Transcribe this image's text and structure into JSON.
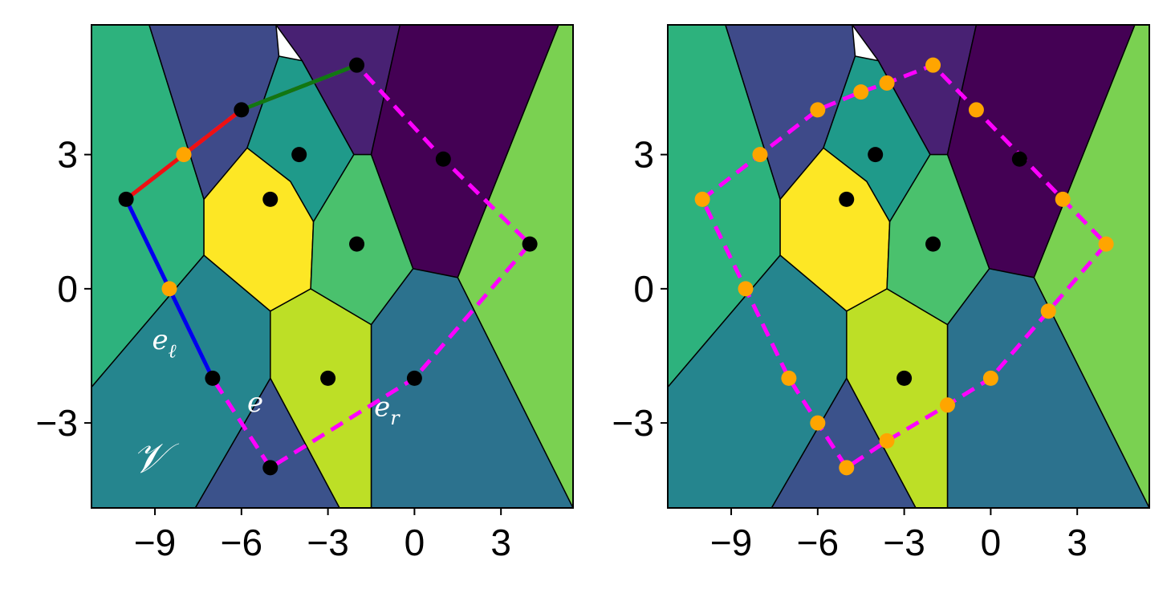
{
  "chart_data": [
    {
      "type": "scatter",
      "subtype": "voronoi-diagram",
      "xlim": [
        -11.2,
        5.5
      ],
      "ylim": [
        -4.9,
        5.9
      ],
      "xticks": [
        -9,
        -6,
        -3,
        0,
        3
      ],
      "yticks": [
        3,
        0,
        -3
      ],
      "xtick_labels": [
        "−9",
        "−6",
        "−3",
        "0",
        "3"
      ],
      "ytick_labels": [
        "3",
        "0",
        "−3"
      ],
      "grid": false,
      "sites": [
        {
          "x": -10,
          "y": 2
        },
        {
          "x": -6,
          "y": 4
        },
        {
          "x": -2,
          "y": 5
        },
        {
          "x": 1,
          "y": 2.9
        },
        {
          "x": 4,
          "y": 1
        },
        {
          "x": 0,
          "y": -2
        },
        {
          "x": -5,
          "y": -4
        },
        {
          "x": -7,
          "y": -2
        },
        {
          "x": -5,
          "y": 2
        },
        {
          "x": -4,
          "y": 3
        },
        {
          "x": -2,
          "y": 1
        },
        {
          "x": -3,
          "y": -2
        }
      ],
      "cells": [
        {
          "color": "#2db27d",
          "vertices": [
            [
              -11.2,
              5.9
            ],
            [
              -9.2,
              5.9
            ],
            [
              -7.3,
              2
            ],
            [
              -7.3,
              0.75
            ],
            [
              -11.2,
              -2.2
            ]
          ]
        },
        {
          "color": "#3e4a89",
          "vertices": [
            [
              -9.2,
              5.9
            ],
            [
              -4.8,
              5.9
            ],
            [
              -4.7,
              5.2
            ],
            [
              -5.8,
              3.15
            ],
            [
              -7.3,
              2
            ]
          ]
        },
        {
          "color": "#482173",
          "vertices": [
            [
              -4.8,
              5.9
            ],
            [
              -0.5,
              5.9
            ],
            [
              -1.5,
              3
            ],
            [
              -2.1,
              3
            ],
            [
              -3.9,
              5.1
            ]
          ]
        },
        {
          "color": "#440154",
          "vertices": [
            [
              -0.5,
              5.9
            ],
            [
              5,
              5.9
            ],
            [
              1.5,
              0.25
            ],
            [
              -0.05,
              0.45
            ],
            [
              -1.5,
              3
            ]
          ]
        },
        {
          "color": "#7ad151",
          "vertices": [
            [
              5,
              5.9
            ],
            [
              5.5,
              5.9
            ],
            [
              5.5,
              -4.9
            ],
            [
              1.5,
              0.25
            ]
          ]
        },
        {
          "color": "#2c728e",
          "vertices": [
            [
              -1.5,
              -0.8
            ],
            [
              -0.05,
              0.45
            ],
            [
              1.5,
              0.25
            ],
            [
              5.5,
              -4.9
            ],
            [
              -1.5,
              -4.9
            ]
          ]
        },
        {
          "color": "#bddf26",
          "vertices": [
            [
              -5,
              -0.5
            ],
            [
              -3.6,
              0
            ],
            [
              -1.5,
              -0.8
            ],
            [
              -1.5,
              -4.9
            ],
            [
              -2.6,
              -4.9
            ],
            [
              -5,
              -2
            ]
          ]
        },
        {
          "color": "#3b528b",
          "vertices": [
            [
              -5,
              -2
            ],
            [
              -2.6,
              -4.9
            ],
            [
              -7.6,
              -4.9
            ]
          ]
        },
        {
          "color": "#25858e",
          "vertices": [
            [
              -11.2,
              -2.2
            ],
            [
              -7.3,
              0.75
            ],
            [
              -5,
              -0.5
            ],
            [
              -5,
              -2
            ],
            [
              -7.6,
              -4.9
            ],
            [
              -11.2,
              -4.9
            ]
          ]
        },
        {
          "color": "#fde725",
          "vertices": [
            [
              -7.3,
              2
            ],
            [
              -5.8,
              3.15
            ],
            [
              -4.3,
              2.4
            ],
            [
              -3.5,
              1.5
            ],
            [
              -3.6,
              0
            ],
            [
              -5,
              -0.5
            ],
            [
              -7.3,
              0.75
            ]
          ]
        },
        {
          "color": "#1f9a8a",
          "vertices": [
            [
              -5.8,
              3.15
            ],
            [
              -4.7,
              5.2
            ],
            [
              -3.9,
              5.1
            ],
            [
              -2.1,
              3
            ],
            [
              -3.5,
              1.5
            ],
            [
              -4.3,
              2.4
            ]
          ]
        },
        {
          "color": "#4ac16d",
          "vertices": [
            [
              -3.5,
              1.5
            ],
            [
              -2.1,
              3
            ],
            [
              -1.5,
              3
            ],
            [
              -0.05,
              0.45
            ],
            [
              -1.5,
              -0.8
            ],
            [
              -3.6,
              0
            ]
          ]
        }
      ],
      "boundary_path": [
        [
          -10,
          2
        ],
        [
          -6,
          4
        ],
        [
          -2,
          5
        ],
        [
          1,
          2.9
        ],
        [
          4,
          1
        ],
        [
          0,
          -2
        ],
        [
          -5,
          -4
        ],
        [
          -7,
          -2
        ],
        [
          -10,
          2
        ]
      ],
      "edges": [
        {
          "from": [
            -10,
            2
          ],
          "to": [
            -6,
            4
          ],
          "color": "#ee1111"
        },
        {
          "from": [
            -6,
            4
          ],
          "to": [
            -2,
            5
          ],
          "color": "#117711"
        },
        {
          "from": [
            -10,
            2
          ],
          "to": [
            -7,
            -2
          ],
          "color": "#0000ee"
        }
      ],
      "midpoints": [
        {
          "x": -8,
          "y": 3
        },
        {
          "x": -8.5,
          "y": 0
        }
      ],
      "annotations": [
        {
          "text": "𝒱",
          "x": -9.8,
          "y": -4.1,
          "size": 52
        },
        {
          "text": "e",
          "x": -5.8,
          "y": -2.75,
          "size": 34,
          "sub": ""
        },
        {
          "text": "e",
          "x": -9.1,
          "y": -1.35,
          "size": 34,
          "sub": "ℓ"
        },
        {
          "text": "e",
          "x": -1.4,
          "y": -2.85,
          "size": 34,
          "sub": "r"
        }
      ]
    },
    {
      "type": "scatter",
      "subtype": "voronoi-diagram",
      "xlim": [
        -11.2,
        5.5
      ],
      "ylim": [
        -4.9,
        5.9
      ],
      "xticks": [
        -9,
        -6,
        -3,
        0,
        3
      ],
      "yticks": [
        3,
        0,
        -3
      ],
      "xtick_labels": [
        "−9",
        "−6",
        "−3",
        "0",
        "3"
      ],
      "ytick_labels": [
        "3",
        "0",
        "−3"
      ],
      "grid": false,
      "sites": [
        {
          "x": -5,
          "y": 2
        },
        {
          "x": -4,
          "y": 3
        },
        {
          "x": -2,
          "y": 1
        },
        {
          "x": -3,
          "y": -2
        },
        {
          "x": 1,
          "y": 2.9
        }
      ],
      "cells": [
        {
          "color": "#2db27d",
          "vertices": [
            [
              -11.2,
              5.9
            ],
            [
              -9.2,
              5.9
            ],
            [
              -7.3,
              2
            ],
            [
              -7.3,
              0.75
            ],
            [
              -11.2,
              -2.2
            ]
          ]
        },
        {
          "color": "#3e4a89",
          "vertices": [
            [
              -9.2,
              5.9
            ],
            [
              -4.8,
              5.9
            ],
            [
              -4.7,
              5.2
            ],
            [
              -5.8,
              3.15
            ],
            [
              -7.3,
              2
            ]
          ]
        },
        {
          "color": "#482173",
          "vertices": [
            [
              -4.8,
              5.9
            ],
            [
              -0.5,
              5.9
            ],
            [
              -1.5,
              3
            ],
            [
              -2.1,
              3
            ],
            [
              -3.9,
              5.1
            ]
          ]
        },
        {
          "color": "#440154",
          "vertices": [
            [
              -0.5,
              5.9
            ],
            [
              5,
              5.9
            ],
            [
              1.5,
              0.25
            ],
            [
              -0.05,
              0.45
            ],
            [
              -1.5,
              3
            ]
          ]
        },
        {
          "color": "#7ad151",
          "vertices": [
            [
              5,
              5.9
            ],
            [
              5.5,
              5.9
            ],
            [
              5.5,
              -4.9
            ],
            [
              1.5,
              0.25
            ]
          ]
        },
        {
          "color": "#2c728e",
          "vertices": [
            [
              -1.5,
              -0.8
            ],
            [
              -0.05,
              0.45
            ],
            [
              1.5,
              0.25
            ],
            [
              5.5,
              -4.9
            ],
            [
              -1.5,
              -4.9
            ]
          ]
        },
        {
          "color": "#bddf26",
          "vertices": [
            [
              -5,
              -0.5
            ],
            [
              -3.6,
              0
            ],
            [
              -1.5,
              -0.8
            ],
            [
              -1.5,
              -4.9
            ],
            [
              -2.6,
              -4.9
            ],
            [
              -5,
              -2
            ]
          ]
        },
        {
          "color": "#3b528b",
          "vertices": [
            [
              -5,
              -2
            ],
            [
              -2.6,
              -4.9
            ],
            [
              -7.6,
              -4.9
            ]
          ]
        },
        {
          "color": "#25858e",
          "vertices": [
            [
              -11.2,
              -2.2
            ],
            [
              -7.3,
              0.75
            ],
            [
              -5,
              -0.5
            ],
            [
              -5,
              -2
            ],
            [
              -7.6,
              -4.9
            ],
            [
              -11.2,
              -4.9
            ]
          ]
        },
        {
          "color": "#fde725",
          "vertices": [
            [
              -7.3,
              2
            ],
            [
              -5.8,
              3.15
            ],
            [
              -4.3,
              2.4
            ],
            [
              -3.5,
              1.5
            ],
            [
              -3.6,
              0
            ],
            [
              -5,
              -0.5
            ],
            [
              -7.3,
              0.75
            ]
          ]
        },
        {
          "color": "#1f9a8a",
          "vertices": [
            [
              -5.8,
              3.15
            ],
            [
              -4.7,
              5.2
            ],
            [
              -3.9,
              5.1
            ],
            [
              -2.1,
              3
            ],
            [
              -3.5,
              1.5
            ],
            [
              -4.3,
              2.4
            ]
          ]
        },
        {
          "color": "#4ac16d",
          "vertices": [
            [
              -3.5,
              1.5
            ],
            [
              -2.1,
              3
            ],
            [
              -1.5,
              3
            ],
            [
              -0.05,
              0.45
            ],
            [
              -1.5,
              -0.8
            ],
            [
              -3.6,
              0
            ]
          ]
        }
      ],
      "boundary_path": [
        [
          -10,
          2
        ],
        [
          -8,
          3
        ],
        [
          -6,
          4
        ],
        [
          -4.5,
          4.4
        ],
        [
          -3.6,
          4.6
        ],
        [
          -2,
          5
        ],
        [
          -0.5,
          4
        ],
        [
          2.5,
          2
        ],
        [
          4,
          1
        ],
        [
          2,
          -0.5
        ],
        [
          0,
          -2
        ],
        [
          -1.5,
          -2.6
        ],
        [
          -3.6,
          -3.4
        ],
        [
          -5,
          -4
        ],
        [
          -6,
          -3
        ],
        [
          -7,
          -2
        ],
        [
          -8.5,
          0
        ],
        [
          -10,
          2
        ]
      ],
      "edges": [],
      "midpoints": [
        {
          "x": -10,
          "y": 2
        },
        {
          "x": -8,
          "y": 3
        },
        {
          "x": -6,
          "y": 4
        },
        {
          "x": -4.5,
          "y": 4.4
        },
        {
          "x": -3.6,
          "y": 4.6
        },
        {
          "x": -2,
          "y": 5
        },
        {
          "x": -0.5,
          "y": 4
        },
        {
          "x": 2.5,
          "y": 2
        },
        {
          "x": 4,
          "y": 1
        },
        {
          "x": 2,
          "y": -0.5
        },
        {
          "x": 0,
          "y": -2
        },
        {
          "x": -1.5,
          "y": -2.6
        },
        {
          "x": -3.6,
          "y": -3.4
        },
        {
          "x": -5,
          "y": -4
        },
        {
          "x": -6,
          "y": -3
        },
        {
          "x": -7,
          "y": -2
        },
        {
          "x": -8.5,
          "y": 0
        }
      ],
      "annotations": []
    }
  ],
  "style": {
    "site_color": "#000000",
    "midpoint_color": "#ffa500",
    "boundary_color": "#ff00ff",
    "cell_edge_color": "#000000"
  }
}
